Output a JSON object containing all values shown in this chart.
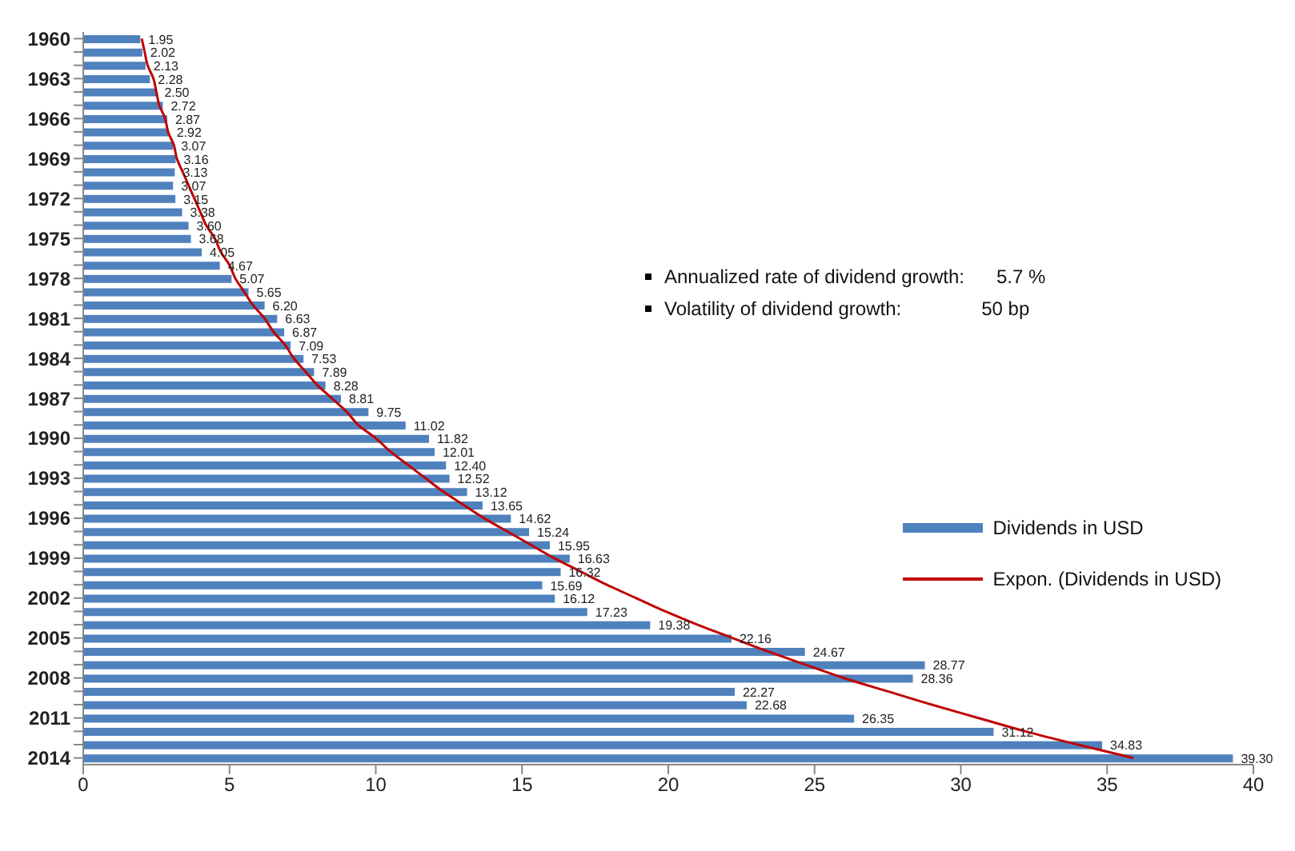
{
  "chart_data": {
    "type": "bar",
    "orientation": "horizontal",
    "categories": [
      "1960",
      null,
      null,
      "1963",
      null,
      null,
      "1966",
      null,
      null,
      "1969",
      null,
      null,
      "1972",
      null,
      null,
      "1975",
      null,
      null,
      "1978",
      null,
      null,
      "1981",
      null,
      null,
      "1984",
      null,
      null,
      "1987",
      null,
      null,
      "1990",
      null,
      null,
      "1993",
      null,
      null,
      "1996",
      null,
      null,
      "1999",
      null,
      null,
      "2002",
      null,
      null,
      "2005",
      null,
      null,
      "2008",
      null,
      null,
      "2011",
      null,
      null,
      "2014"
    ],
    "series": [
      {
        "name": "Dividends in USD",
        "color": "#4f81bd",
        "value_labels": [
          "1.95",
          "2.02",
          "2.13",
          "2.28",
          "2.50",
          "2.72",
          "2.87",
          "2.92",
          "3.07",
          "3.16",
          "3.13",
          "3.07",
          "3.15",
          "3.38",
          "3.60",
          "3.68",
          "4.05",
          "4.67",
          "5.07",
          "5.65",
          "6.20",
          "6.63",
          "6.87",
          "7.09",
          "7.53",
          "7.89",
          "8.28",
          "8.81",
          "9.75",
          "11.02",
          "11.82",
          "12.01",
          "12.40",
          "12.52",
          "13.12",
          "13.65",
          "14.62",
          "15.24",
          "15.95",
          "16.63",
          "16.32",
          "15.69",
          "16.12",
          "17.23",
          "19.38",
          "22.16",
          "24.67",
          "28.77",
          "28.36",
          "22.27",
          "22.68",
          "26.35",
          "31.12",
          "34.83",
          "39.30"
        ],
        "values": [
          1.95,
          2.02,
          2.13,
          2.28,
          2.5,
          2.72,
          2.87,
          2.92,
          3.07,
          3.16,
          3.13,
          3.07,
          3.15,
          3.38,
          3.6,
          3.68,
          4.05,
          4.67,
          5.07,
          5.65,
          6.2,
          6.63,
          6.87,
          7.09,
          7.53,
          7.89,
          8.28,
          8.81,
          9.75,
          11.02,
          11.82,
          12.01,
          12.4,
          12.52,
          13.12,
          13.65,
          14.62,
          15.24,
          15.95,
          16.63,
          16.32,
          15.69,
          16.12,
          17.23,
          19.38,
          22.16,
          24.67,
          28.77,
          28.36,
          22.27,
          22.68,
          26.35,
          31.12,
          34.83,
          39.3
        ]
      },
      {
        "name": "Expon. (Dividends in USD)",
        "type": "line",
        "color": "#c00000",
        "values": [
          2.0,
          2.1,
          2.2,
          2.4,
          2.5,
          2.6,
          2.8,
          2.9,
          3.1,
          3.2,
          3.4,
          3.6,
          3.8,
          4.0,
          4.2,
          4.5,
          4.7,
          5.0,
          5.2,
          5.5,
          5.8,
          6.2,
          6.5,
          6.9,
          7.2,
          7.6,
          8.0,
          8.5,
          9.0,
          9.4,
          10.0,
          10.5,
          11.1,
          11.7,
          12.3,
          13.0,
          13.7,
          14.5,
          15.3,
          16.1,
          17.0,
          17.9,
          18.9,
          19.9,
          21.0,
          22.2,
          23.4,
          24.7,
          26.0,
          27.5,
          29.0,
          30.6,
          32.2,
          34.0,
          35.9
        ]
      }
    ],
    "xlim": [
      0,
      40
    ],
    "xticks": [
      0,
      5,
      10,
      15,
      20,
      25,
      30,
      35,
      40
    ],
    "annotations": [
      "Annualized rate of dividend growth:      5.7 %",
      "Volatility of dividend growth:               50 bp"
    ],
    "legend": "right",
    "grid": false
  }
}
